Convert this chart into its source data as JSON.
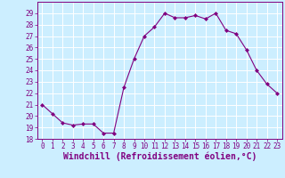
{
  "x": [
    0,
    1,
    2,
    3,
    4,
    5,
    6,
    7,
    8,
    9,
    10,
    11,
    12,
    13,
    14,
    15,
    16,
    17,
    18,
    19,
    20,
    21,
    22,
    23
  ],
  "y": [
    21.0,
    20.2,
    19.4,
    19.2,
    19.3,
    19.3,
    18.5,
    18.5,
    22.5,
    25.0,
    27.0,
    27.8,
    29.0,
    28.6,
    28.6,
    28.8,
    28.5,
    29.0,
    27.5,
    27.2,
    25.8,
    24.0,
    22.8,
    22.0
  ],
  "line_color": "#800080",
  "marker": "D",
  "marker_size": 2.0,
  "bg_color": "#cceeff",
  "grid_color": "#ffffff",
  "xlabel": "Windchill (Refroidissement éolien,°C)",
  "xlabel_color": "#800080",
  "ylim": [
    18,
    30
  ],
  "xlim": [
    -0.5,
    23.5
  ],
  "yticks": [
    18,
    19,
    20,
    21,
    22,
    23,
    24,
    25,
    26,
    27,
    28,
    29
  ],
  "xticks": [
    0,
    1,
    2,
    3,
    4,
    5,
    6,
    7,
    8,
    9,
    10,
    11,
    12,
    13,
    14,
    15,
    16,
    17,
    18,
    19,
    20,
    21,
    22,
    23
  ],
  "tick_color": "#800080",
  "tick_fontsize": 5.5,
  "xlabel_fontsize": 7.0,
  "spine_color": "#800080",
  "linewidth": 0.8
}
